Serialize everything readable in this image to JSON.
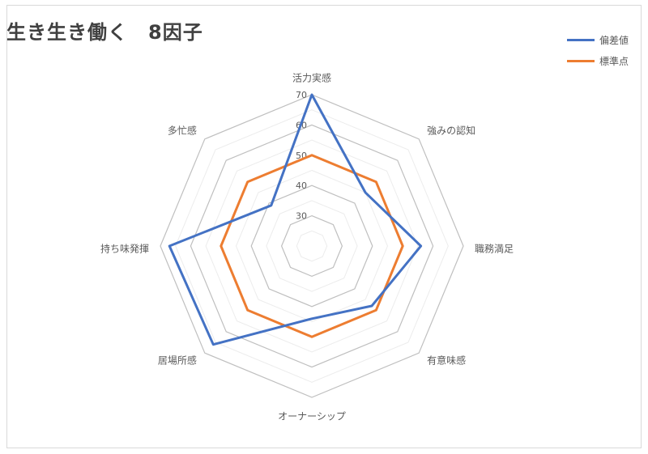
{
  "chart_data": {
    "type": "radar",
    "title": "生き生き働く　8因子",
    "categories": [
      "活力実感",
      "強みの認知",
      "職務満足",
      "有意味感",
      "オーナーシップ",
      "居場所感",
      "持ち味発揮",
      "多忙感"
    ],
    "series": [
      {
        "name": "偏差値",
        "color": "#4472c4",
        "values": [
          70,
          45,
          56,
          48,
          44,
          66,
          67,
          39
        ]
      },
      {
        "name": "標準点",
        "color": "#ed7d31",
        "values": [
          50,
          50,
          50,
          50,
          50,
          50,
          50,
          50
        ]
      }
    ],
    "rlim": [
      20,
      70
    ],
    "ticks": [
      30,
      40,
      50,
      60,
      70
    ],
    "grid": true,
    "legend_position": "top-right"
  }
}
